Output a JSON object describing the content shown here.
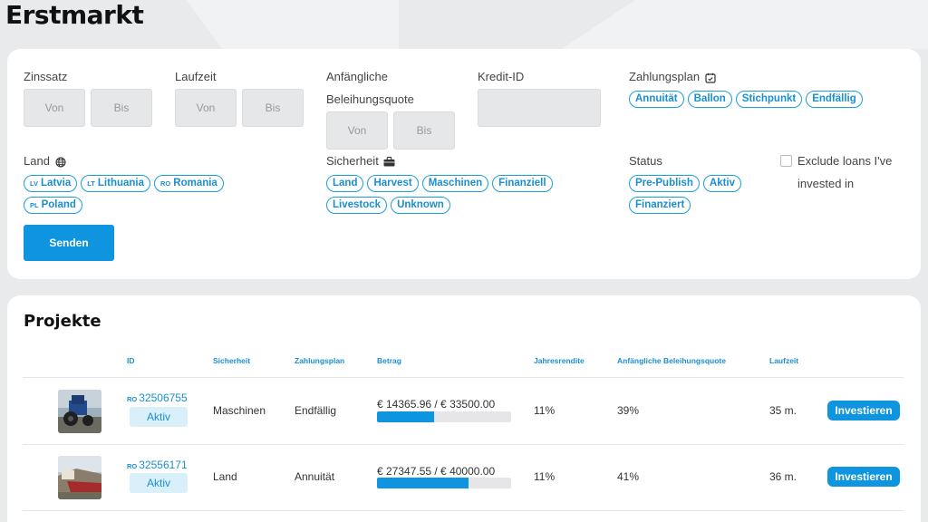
{
  "page": {
    "title": "Erstmarkt"
  },
  "filters": {
    "zinssatz": {
      "label": "Zinssatz",
      "from_placeholder": "Von",
      "to_placeholder": "Bis"
    },
    "laufzeit": {
      "label": "Laufzeit",
      "from_placeholder": "Von",
      "to_placeholder": "Bis"
    },
    "ltv": {
      "label_line1": "Anfängliche",
      "label_line2": "Beleihungsquote",
      "from_placeholder": "Von",
      "to_placeholder": "Bis"
    },
    "kredit_id": {
      "label": "Kredit-ID",
      "value": ""
    },
    "zahlungsplan": {
      "label": "Zahlungsplan",
      "icon": "calendar-check-icon",
      "options": [
        "Annuität",
        "Ballon",
        "Stichpunkt",
        "Endfällig"
      ]
    },
    "land": {
      "label": "Land",
      "icon": "globe-icon",
      "options": [
        {
          "code": "LV",
          "name": "Latvia"
        },
        {
          "code": "LT",
          "name": "Lithuania"
        },
        {
          "code": "RO",
          "name": "Romania"
        },
        {
          "code": "PL",
          "name": "Poland"
        }
      ]
    },
    "sicherheit": {
      "label": "Sicherheit",
      "icon": "briefcase-icon",
      "options": [
        "Land",
        "Harvest",
        "Maschinen",
        "Finanziell",
        "Livestock",
        "Unknown"
      ]
    },
    "status": {
      "label": "Status",
      "options": [
        "Pre-Publish",
        "Aktiv",
        "Finanziert"
      ]
    },
    "exclude": {
      "label_line1": "Exclude loans I've",
      "label_line2": "invested in",
      "checked": false
    },
    "submit_label": "Senden"
  },
  "projects": {
    "title": "Projekte",
    "columns": [
      "ID",
      "Sicherheit",
      "Zahlungsplan",
      "Betrag",
      "Jahresrendite",
      "Anfängliche Beleihungsquote",
      "Laufzeit"
    ],
    "rows": [
      {
        "country": "RO",
        "id": "32506755",
        "status": "Aktiv",
        "sicherheit": "Maschinen",
        "zahlungsplan": "Endfällig",
        "betrag": "€ 14365.96 / € 33500.00",
        "progress": 0.429,
        "rendite": "11%",
        "ltv": "39%",
        "laufzeit": "35 m.",
        "action": "Investieren",
        "thumb_icon": "tractor-photo"
      },
      {
        "country": "RO",
        "id": "32556171",
        "status": "Aktiv",
        "sicherheit": "Land",
        "zahlungsplan": "Annuität",
        "betrag": "€ 27347.55 / € 40000.00",
        "progress": 0.684,
        "rendite": "11%",
        "ltv": "41%",
        "laufzeit": "36 m.",
        "action": "Investieren",
        "thumb_icon": "land-photo"
      }
    ]
  }
}
